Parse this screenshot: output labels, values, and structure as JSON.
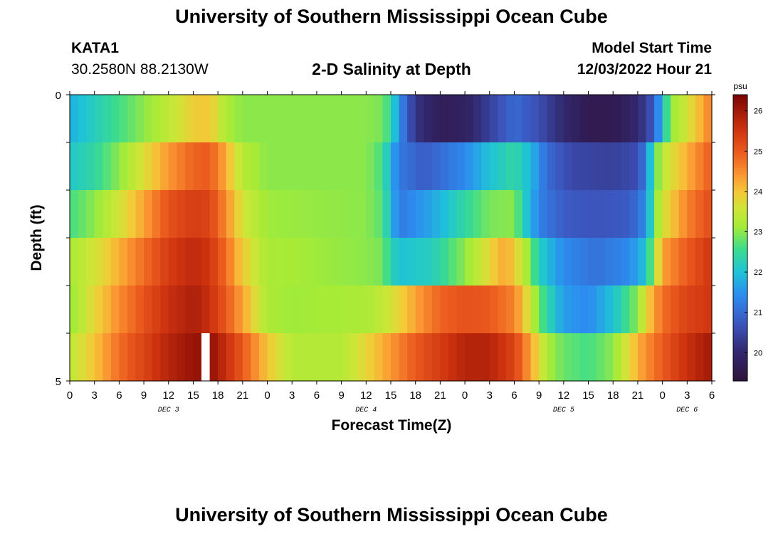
{
  "page": {
    "title_top": "University of Southern Mississippi Ocean Cube",
    "title_bottom": "University of Southern Mississippi Ocean Cube"
  },
  "header": {
    "station": "KATA1",
    "coords": "30.2580N  88.2130W",
    "plot_title": "2-D Salinity at Depth",
    "model_start_label": "Model Start Time",
    "model_start_value": "12/03/2022 Hour 21"
  },
  "chart_data": {
    "type": "heatmap",
    "title": "2-D Salinity at Depth",
    "xlabel": "Forecast Time(Z)",
    "ylabel": "Depth (ft)",
    "colorbar_label": "psu",
    "colorbar_ticks": [
      20,
      21,
      22,
      23,
      24,
      25,
      26
    ],
    "color_range": [
      19.3,
      26.4
    ],
    "x_hours_range": [
      0,
      78
    ],
    "y_depth_range": [
      0,
      5
    ],
    "y_tick_labels": [
      "0",
      "5"
    ],
    "x_tick_labels": [
      "0",
      "3",
      "6",
      "9",
      "12",
      "15",
      "18",
      "21",
      "0",
      "3",
      "6",
      "9",
      "12",
      "15",
      "18",
      "21",
      "0",
      "3",
      "6",
      "9",
      "12",
      "15",
      "18",
      "21",
      "0",
      "3",
      "6"
    ],
    "day_labels": [
      {
        "text": "DEC 3",
        "hour": 12
      },
      {
        "text": "DEC 4",
        "hour": 36
      },
      {
        "text": "DEC 5",
        "hour": 60
      },
      {
        "text": "DEC 6",
        "hour": 75
      }
    ],
    "missing_cell": {
      "hour": 16,
      "layer": 5
    },
    "layers": [
      {
        "depth": "0-1 ft",
        "keys": [
          [
            0,
            21.8
          ],
          [
            3,
            22.2
          ],
          [
            6,
            22.6
          ],
          [
            9,
            23.0
          ],
          [
            12,
            23.4
          ],
          [
            15,
            23.9
          ],
          [
            17,
            24.0
          ],
          [
            19,
            23.2
          ],
          [
            21,
            23.0
          ],
          [
            30,
            23.0
          ],
          [
            36,
            23.0
          ],
          [
            38,
            22.9
          ],
          [
            39,
            22.4
          ],
          [
            40,
            21.5
          ],
          [
            42,
            20.2
          ],
          [
            45,
            19.7
          ],
          [
            48,
            19.8
          ],
          [
            51,
            20.4
          ],
          [
            54,
            21.0
          ],
          [
            57,
            20.6
          ],
          [
            60,
            20.0
          ],
          [
            63,
            19.6
          ],
          [
            66,
            19.6
          ],
          [
            69,
            20.0
          ],
          [
            71,
            20.8
          ],
          [
            72,
            22.0
          ],
          [
            73,
            23.0
          ],
          [
            75,
            23.6
          ],
          [
            77,
            24.3
          ],
          [
            78,
            24.7
          ]
        ]
      },
      {
        "depth": "1-2 ft",
        "keys": [
          [
            0,
            22.1
          ],
          [
            3,
            22.4
          ],
          [
            6,
            23.0
          ],
          [
            9,
            23.7
          ],
          [
            12,
            24.4
          ],
          [
            15,
            24.9
          ],
          [
            17,
            25.0
          ],
          [
            19,
            24.2
          ],
          [
            21,
            23.3
          ],
          [
            24,
            23.0
          ],
          [
            33,
            23.0
          ],
          [
            36,
            23.0
          ],
          [
            38,
            22.6
          ],
          [
            39,
            21.8
          ],
          [
            40,
            21.2
          ],
          [
            43,
            20.8
          ],
          [
            48,
            21.4
          ],
          [
            51,
            22.0
          ],
          [
            54,
            22.4
          ],
          [
            56,
            21.9
          ],
          [
            58,
            21.0
          ],
          [
            61,
            20.5
          ],
          [
            66,
            20.4
          ],
          [
            69,
            20.6
          ],
          [
            70,
            21.3
          ],
          [
            71,
            22.6
          ],
          [
            72,
            23.4
          ],
          [
            75,
            24.2
          ],
          [
            78,
            25.0
          ]
        ]
      },
      {
        "depth": "2-3 ft",
        "keys": [
          [
            0,
            22.6
          ],
          [
            3,
            23.0
          ],
          [
            6,
            23.6
          ],
          [
            9,
            24.3
          ],
          [
            12,
            25.1
          ],
          [
            15,
            25.4
          ],
          [
            17,
            25.3
          ],
          [
            19,
            24.5
          ],
          [
            21,
            23.6
          ],
          [
            24,
            23.1
          ],
          [
            36,
            23.0
          ],
          [
            38,
            22.7
          ],
          [
            39,
            21.9
          ],
          [
            40,
            21.2
          ],
          [
            44,
            21.7
          ],
          [
            48,
            22.4
          ],
          [
            51,
            22.9
          ],
          [
            54,
            23.0
          ],
          [
            55,
            22.3
          ],
          [
            57,
            21.3
          ],
          [
            60,
            20.8
          ],
          [
            64,
            20.7
          ],
          [
            68,
            20.8
          ],
          [
            70,
            21.4
          ],
          [
            71,
            22.8
          ],
          [
            72,
            23.6
          ],
          [
            75,
            24.6
          ],
          [
            78,
            25.2
          ]
        ]
      },
      {
        "depth": "3-4 ft",
        "keys": [
          [
            0,
            23.2
          ],
          [
            3,
            23.6
          ],
          [
            6,
            24.2
          ],
          [
            9,
            24.8
          ],
          [
            12,
            25.4
          ],
          [
            15,
            25.7
          ],
          [
            17,
            25.5
          ],
          [
            19,
            24.8
          ],
          [
            21,
            23.9
          ],
          [
            24,
            23.2
          ],
          [
            36,
            23.0
          ],
          [
            38,
            22.9
          ],
          [
            39,
            22.3
          ],
          [
            40,
            22.0
          ],
          [
            44,
            22.2
          ],
          [
            48,
            23.0
          ],
          [
            51,
            23.8
          ],
          [
            53,
            24.3
          ],
          [
            55,
            23.5
          ],
          [
            57,
            22.2
          ],
          [
            60,
            21.4
          ],
          [
            64,
            21.1
          ],
          [
            68,
            21.4
          ],
          [
            70,
            22.0
          ],
          [
            71,
            23.2
          ],
          [
            72,
            24.3
          ],
          [
            75,
            25.0
          ],
          [
            78,
            25.5
          ]
        ]
      },
      {
        "depth": "4-5 ft",
        "keys": [
          [
            0,
            23.0
          ],
          [
            3,
            23.8
          ],
          [
            6,
            24.5
          ],
          [
            9,
            25.1
          ],
          [
            12,
            25.6
          ],
          [
            15,
            25.9
          ],
          [
            17,
            25.6
          ],
          [
            19,
            25.0
          ],
          [
            21,
            24.3
          ],
          [
            24,
            23.2
          ],
          [
            27,
            23.1
          ],
          [
            36,
            23.2
          ],
          [
            39,
            23.6
          ],
          [
            42,
            24.3
          ],
          [
            45,
            24.9
          ],
          [
            48,
            25.1
          ],
          [
            51,
            25.0
          ],
          [
            54,
            24.6
          ],
          [
            56,
            23.5
          ],
          [
            57,
            22.8
          ],
          [
            58,
            22.4
          ],
          [
            60,
            21.6
          ],
          [
            63,
            21.4
          ],
          [
            66,
            22.0
          ],
          [
            69,
            23.0
          ],
          [
            70,
            23.8
          ],
          [
            72,
            24.8
          ],
          [
            75,
            25.3
          ],
          [
            78,
            25.5
          ]
        ]
      },
      {
        "depth": "5 ft",
        "keys": [
          [
            0,
            23.4
          ],
          [
            3,
            24.0
          ],
          [
            6,
            24.8
          ],
          [
            9,
            25.3
          ],
          [
            12,
            25.8
          ],
          [
            15,
            26.1
          ],
          [
            17,
            26.2
          ],
          [
            19,
            25.6
          ],
          [
            21,
            25.0
          ],
          [
            24,
            24.0
          ],
          [
            27,
            23.3
          ],
          [
            33,
            23.3
          ],
          [
            36,
            23.8
          ],
          [
            39,
            24.4
          ],
          [
            42,
            25.0
          ],
          [
            45,
            25.4
          ],
          [
            48,
            25.8
          ],
          [
            51,
            25.8
          ],
          [
            54,
            25.3
          ],
          [
            56,
            24.3
          ],
          [
            58,
            23.2
          ],
          [
            60,
            22.8
          ],
          [
            63,
            22.6
          ],
          [
            66,
            23.0
          ],
          [
            69,
            24.2
          ],
          [
            72,
            25.0
          ],
          [
            75,
            25.6
          ],
          [
            78,
            26.0
          ]
        ]
      }
    ]
  }
}
